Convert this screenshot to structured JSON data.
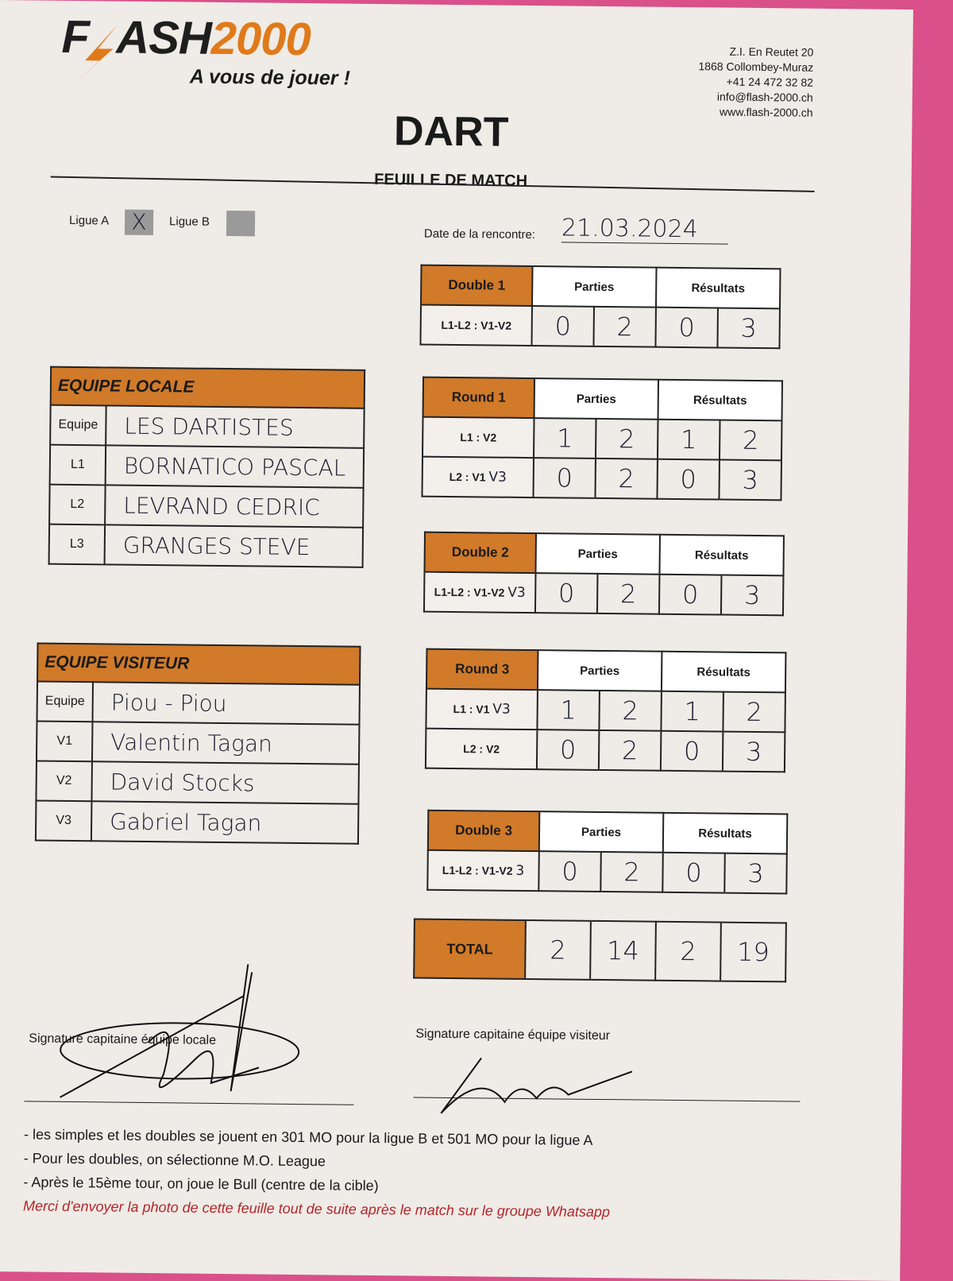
{
  "header": {
    "logo": "FLASH2000",
    "slogan": "A vous de jouer !",
    "contact": [
      "Z.I. En Reutet 20",
      "1868 Collombey-Muraz",
      "+41 24 472 32 82",
      "info@flash-2000.ch",
      "www.flash-2000.ch"
    ],
    "title": "DART",
    "subtitle": "FEUILLE DE MATCH"
  },
  "leagues": {
    "a_label": "Ligue A",
    "a_mark": "X",
    "b_label": "Ligue B",
    "selected": "Ligue A"
  },
  "date": {
    "label": "Date de la rencontre:",
    "value": "21.03.2024"
  },
  "columns": {
    "parties": "Parties",
    "resultats": "Résultats"
  },
  "matches": [
    {
      "title": "Double 1",
      "rows": [
        {
          "label": "L1-L2 : V1-V2",
          "correction": "",
          "scores": [
            "0",
            "2",
            "0",
            "3"
          ]
        }
      ]
    },
    {
      "title": "Round 1",
      "rows": [
        {
          "label": "L1  :  V2",
          "correction": "",
          "scores": [
            "1",
            "2",
            "1",
            "2"
          ]
        },
        {
          "label": "L2  :  V1",
          "correction": "V3",
          "scores": [
            "0",
            "2",
            "0",
            "3"
          ]
        }
      ]
    },
    {
      "title": "Double 2",
      "rows": [
        {
          "label": "L1-L2 : V1-V2",
          "correction": "V3",
          "scores": [
            "0",
            "2",
            "0",
            "3"
          ]
        }
      ]
    },
    {
      "title": "Round 3",
      "rows": [
        {
          "label": "L1  :  V1",
          "correction": "V3",
          "scores": [
            "1",
            "2",
            "1",
            "2"
          ]
        },
        {
          "label": "L2  :  V2",
          "correction": "",
          "scores": [
            "0",
            "2",
            "0",
            "3"
          ]
        }
      ]
    },
    {
      "title": "Double 3",
      "rows": [
        {
          "label": "L1-L2 : V1-V2",
          "correction": "3",
          "scores": [
            "0",
            "2",
            "0",
            "3"
          ]
        }
      ]
    }
  ],
  "total": {
    "label": "TOTAL",
    "scores": [
      "2",
      "14",
      "2",
      "19"
    ]
  },
  "teams": [
    {
      "title": "EQUIPE LOCALE",
      "rows": [
        {
          "key": "Equipe",
          "value": "LES DARTISTES"
        },
        {
          "key": "L1",
          "value": "BORNATICO PASCAL"
        },
        {
          "key": "L2",
          "value": "LEVRAND CEDRIC"
        },
        {
          "key": "L3",
          "value": "GRANGES STEVE"
        }
      ]
    },
    {
      "title": "EQUIPE VISITEUR",
      "rows": [
        {
          "key": "Equipe",
          "value": "Piou - Piou"
        },
        {
          "key": "V1",
          "value": "Valentin Tagan"
        },
        {
          "key": "V2",
          "value": "David Stocks"
        },
        {
          "key": "V3",
          "value": "Gabriel Tagan"
        }
      ]
    }
  ],
  "signatures": {
    "local": "Signature capitaine équipe locale",
    "visitor": "Signature capitaine équipe visiteur"
  },
  "notes": [
    "- les simples  et les doubles se jouent en 301 MO pour la ligue B et 501 MO pour la ligue A",
    "- Pour les doubles, on sélectionne M.O. League",
    "- Après le 15ème tour, on joue le Bull (centre de la cible)"
  ],
  "notice": "Merci d'envoyer la photo de cette feuille tout de suite après le match sur le groupe Whatsapp",
  "colors": {
    "orange": "#d07a2a",
    "logo_orange": "#e07a1a",
    "notice_red": "#b3262a",
    "background_pink": "#d9508a"
  }
}
